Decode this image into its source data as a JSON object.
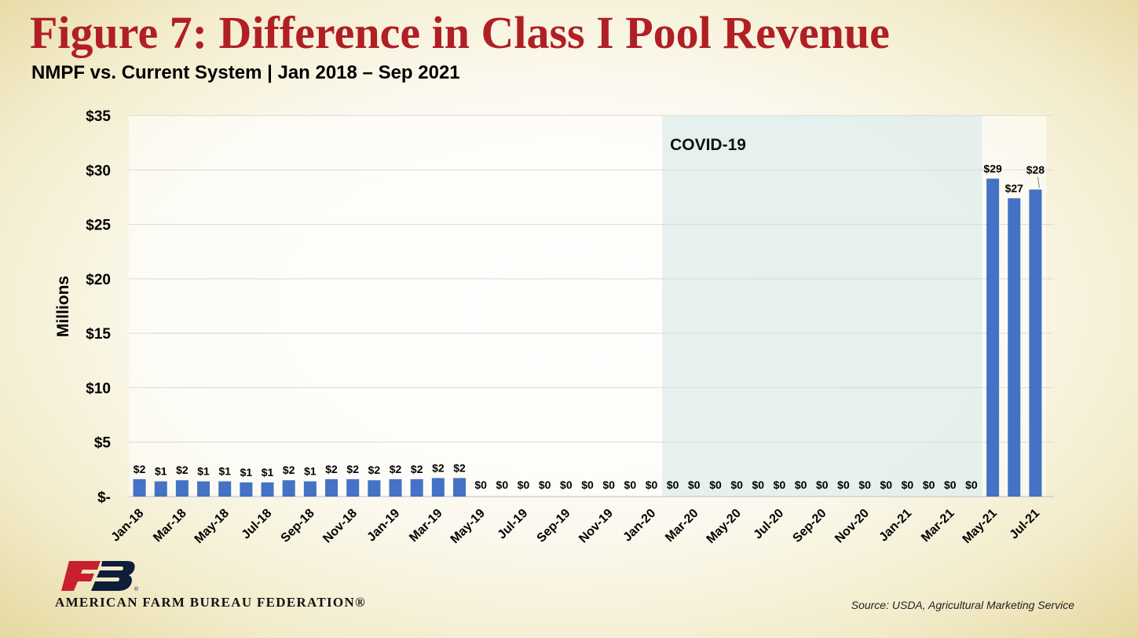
{
  "slide": {
    "title": "Figure 7: Difference in Class I Pool Revenue",
    "subtitle": "NMPF vs. Current System | Jan 2018 – Sep 2021",
    "source": "Source: USDA, Agricultural Marketing Service",
    "logo_text": "AMERICAN FARM BUREAU FEDERATION®"
  },
  "colors": {
    "title": "#b01f24",
    "bar": "#4472c4",
    "shade": "#dcebea",
    "gridline": "#d9d9d9",
    "text": "#000000",
    "logo_red": "#c8202f",
    "logo_navy": "#0f1d3a"
  },
  "chart_data": {
    "type": "bar",
    "title": "Figure 7: Difference in Class I Pool Revenue",
    "subtitle": "NMPF vs. Current System | Jan 2018 – Sep 2021",
    "xlabel": "",
    "ylabel": "Millions",
    "ylim": [
      0,
      35
    ],
    "yticks": [
      0,
      5,
      10,
      15,
      20,
      25,
      30,
      35
    ],
    "ytick_labels": [
      "$-",
      "$5",
      "$10",
      "$15",
      "$20",
      "$25",
      "$30",
      "$35"
    ],
    "grid": true,
    "legend": "none",
    "categories": [
      "Jan-18",
      "Feb-18",
      "Mar-18",
      "Apr-18",
      "May-18",
      "Jun-18",
      "Jul-18",
      "Aug-18",
      "Sep-18",
      "Oct-18",
      "Nov-18",
      "Dec-18",
      "Jan-19",
      "Feb-19",
      "Mar-19",
      "Apr-19",
      "May-19",
      "Jun-19",
      "Jul-19",
      "Aug-19",
      "Sep-19",
      "Oct-19",
      "Nov-19",
      "Dec-19",
      "Jan-20",
      "Feb-20",
      "Mar-20",
      "Apr-20",
      "May-20",
      "Jun-20",
      "Jul-20",
      "Aug-20",
      "Sep-20",
      "Oct-20",
      "Nov-20",
      "Dec-20",
      "Jan-21",
      "Feb-21",
      "Mar-21",
      "Apr-21",
      "May-21",
      "Jun-21",
      "Jul-21"
    ],
    "tick_labels_shown": [
      "Jan-18",
      "Mar-18",
      "May-18",
      "Jul-18",
      "Sep-18",
      "Nov-18",
      "Jan-19",
      "Mar-19",
      "May-19",
      "Jul-19",
      "Sep-19",
      "Nov-19",
      "Jan-20",
      "Mar-20",
      "May-20",
      "Jul-20",
      "Sep-20",
      "Nov-20",
      "Jan-21",
      "Mar-21",
      "May-21",
      "Jul-21"
    ],
    "values": [
      1.6,
      1.4,
      1.5,
      1.4,
      1.4,
      1.3,
      1.3,
      1.5,
      1.4,
      1.6,
      1.6,
      1.5,
      1.6,
      1.6,
      1.7,
      1.7,
      0,
      0,
      0,
      0,
      0,
      0,
      0,
      0,
      0,
      0,
      0,
      0,
      0,
      0,
      0,
      0,
      0,
      0,
      0,
      0,
      0,
      0,
      0,
      0,
      29.2,
      27.4,
      28.2
    ],
    "data_labels": [
      "$2",
      "$1",
      "$2",
      "$1",
      "$1",
      "$1",
      "$1",
      "$2",
      "$1",
      "$2",
      "$2",
      "$2",
      "$2",
      "$2",
      "$2",
      "$2",
      "$0",
      "$0",
      "$0",
      "$0",
      "$0",
      "$0",
      "$0",
      "$0",
      "$0",
      "$0",
      "$0",
      "$0",
      "$0",
      "$0",
      "$0",
      "$0",
      "$0",
      "$0",
      "$0",
      "$0",
      "$0",
      "$0",
      "$0",
      "$0",
      "$29",
      "$27",
      "$28"
    ],
    "shaded_region": {
      "label": "COVID-19",
      "from": "Feb-20",
      "to": "Apr-21"
    }
  }
}
